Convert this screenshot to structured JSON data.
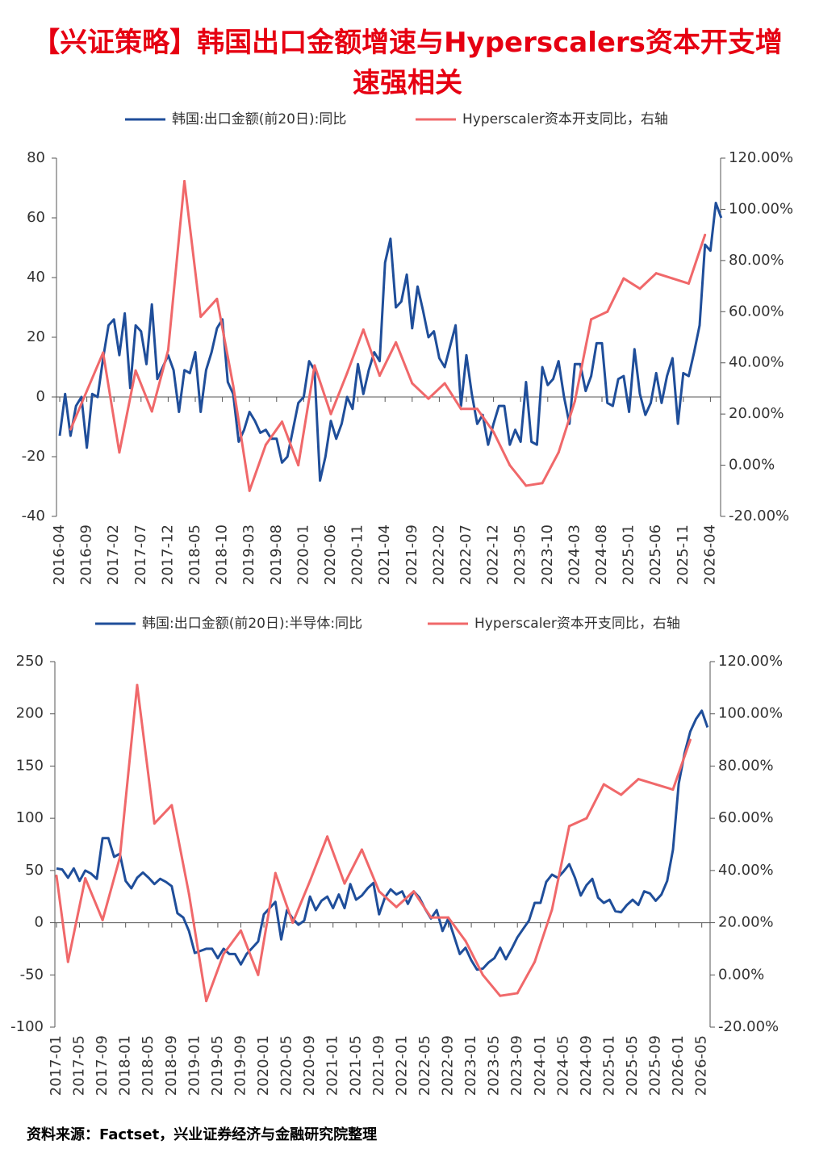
{
  "title": "【兴证策略】韩国出口金额增速与Hyperscalers资本开支增速强相关",
  "source": "资料来源：Factset，兴业证券经济与金融研究院整理",
  "chart_data": [
    {
      "type": "line",
      "categories": [
        "2016-04",
        null,
        null,
        null,
        null,
        "2016-09",
        null,
        null,
        null,
        null,
        "2017-02",
        null,
        null,
        null,
        null,
        "2017-07",
        null,
        null,
        null,
        null,
        "2017-12",
        null,
        null,
        null,
        null,
        "2018-05",
        null,
        null,
        null,
        null,
        "2018-10",
        null,
        null,
        null,
        null,
        "2019-03",
        null,
        null,
        null,
        null,
        "2019-08",
        null,
        null,
        null,
        null,
        "2020-01",
        null,
        null,
        null,
        null,
        "2020-06",
        null,
        null,
        null,
        null,
        "2020-11",
        null,
        null,
        null,
        null,
        "2021-04",
        null,
        null,
        null,
        null,
        "2021-09",
        null,
        null,
        null,
        null,
        "2022-02",
        null,
        null,
        null,
        null,
        "2022-07",
        null,
        null,
        null,
        null,
        "2022-12",
        null,
        null,
        null,
        null,
        "2023-05",
        null,
        null,
        null,
        null,
        "2023-10",
        null,
        null,
        null,
        null,
        "2024-03",
        null,
        null,
        null,
        null,
        "2024-08",
        null,
        null,
        null,
        null,
        "2025-01",
        null,
        null,
        null,
        null,
        "2025-06",
        null,
        null,
        null,
        null,
        "2025-11",
        null,
        null,
        null,
        null,
        "2026-04",
        null,
        null
      ],
      "series": [
        {
          "name": "韩国:出口金额(前20日):同比",
          "color": "#1f4e9a",
          "axis": "y",
          "values": [
            -13,
            1,
            -13,
            -3,
            0,
            -17,
            1,
            0,
            13,
            24,
            26,
            14,
            28,
            3,
            24,
            22,
            11,
            31,
            6,
            10,
            14,
            9,
            -5,
            9,
            8,
            15,
            -5,
            9,
            15,
            23,
            26,
            5,
            1,
            -15,
            -11,
            -5,
            -8,
            -12,
            -11,
            -14,
            -14,
            -22,
            -20,
            -11,
            -2,
            0,
            12,
            9,
            -28,
            -20,
            -8,
            -14,
            -9,
            0,
            -4,
            11,
            1,
            9,
            15,
            12,
            45,
            53,
            30,
            32,
            41,
            23,
            37,
            29,
            20,
            22,
            13,
            10,
            17,
            24,
            -3,
            14,
            1,
            -9,
            -6,
            -16,
            -9,
            -3,
            -3,
            -16,
            -11,
            -15,
            5,
            -15,
            -16,
            10,
            4,
            6,
            12,
            0,
            -9,
            11,
            11,
            2,
            7,
            18,
            18,
            -2,
            -3,
            6,
            7,
            -5,
            16,
            1,
            -6,
            -2,
            8,
            -2,
            7,
            13,
            -9,
            8,
            7,
            15,
            24,
            51,
            49,
            65,
            60
          ]
        },
        {
          "name": "Hyperscaler资本开支同比，右轴",
          "color": "#f0686a",
          "axis": "y2",
          "values": [
            null,
            null,
            14,
            null,
            null,
            29,
            null,
            null,
            44,
            null,
            null,
            5,
            null,
            null,
            37,
            null,
            null,
            21,
            null,
            null,
            45,
            null,
            null,
            111,
            null,
            null,
            58,
            null,
            null,
            65,
            null,
            null,
            31,
            null,
            null,
            -10,
            null,
            null,
            8,
            null,
            null,
            17,
            null,
            null,
            0,
            null,
            null,
            39,
            null,
            null,
            20,
            null,
            null,
            36,
            null,
            null,
            53,
            null,
            null,
            35,
            null,
            null,
            48,
            null,
            null,
            32,
            null,
            null,
            26,
            null,
            null,
            32,
            null,
            null,
            22,
            null,
            null,
            22,
            null,
            null,
            13,
            null,
            null,
            0,
            null,
            null,
            -8,
            null,
            null,
            -7,
            null,
            null,
            5,
            null,
            null,
            25,
            null,
            null,
            57,
            null,
            null,
            60,
            null,
            null,
            73,
            null,
            null,
            69,
            null,
            null,
            75,
            null,
            null,
            73,
            null,
            null,
            71,
            null,
            null,
            90,
            null,
            null,
            null
          ]
        }
      ],
      "ylim": [
        -40,
        80
      ],
      "yticks": [
        -40,
        -20,
        0,
        20,
        40,
        60,
        80
      ],
      "y2lim": [
        -20,
        120
      ],
      "y2ticks": [
        {
          "value": -20,
          "label": "-20.00%"
        },
        {
          "value": 0,
          "label": "0.00%"
        },
        {
          "value": 20,
          "label": "20.00%"
        },
        {
          "value": 40,
          "label": "40.00%"
        },
        {
          "value": 60,
          "label": "60.00%"
        },
        {
          "value": 80,
          "label": "80.00%"
        },
        {
          "value": 100,
          "label": "100.00%"
        },
        {
          "value": 120,
          "label": "120.00%"
        }
      ],
      "grid": false,
      "legend": "top"
    },
    {
      "type": "line",
      "categories": [
        "2017-01",
        null,
        null,
        null,
        "2017-05",
        null,
        null,
        null,
        "2017-09",
        null,
        null,
        null,
        "2018-01",
        null,
        null,
        null,
        "2018-05",
        null,
        null,
        null,
        "2018-09",
        null,
        null,
        null,
        "2019-01",
        null,
        null,
        null,
        "2019-05",
        null,
        null,
        null,
        "2019-09",
        null,
        null,
        null,
        "2020-01",
        null,
        null,
        null,
        "2020-05",
        null,
        null,
        null,
        "2020-09",
        null,
        null,
        null,
        "2021-01",
        null,
        null,
        null,
        "2021-05",
        null,
        null,
        null,
        "2021-09",
        null,
        null,
        null,
        "2022-01",
        null,
        null,
        null,
        "2022-05",
        null,
        null,
        null,
        "2022-09",
        null,
        null,
        null,
        "2023-01",
        null,
        null,
        null,
        "2023-05",
        null,
        null,
        null,
        "2023-09",
        null,
        null,
        null,
        "2024-01",
        null,
        null,
        null,
        "2024-05",
        null,
        null,
        null,
        "2024-09",
        null,
        null,
        null,
        "2025-01",
        null,
        null,
        null,
        "2025-05",
        null,
        null,
        null,
        "2025-09",
        null,
        null,
        null,
        "2026-01",
        null,
        null,
        null,
        "2026-05",
        null
      ],
      "series": [
        {
          "name": "韩国:出口金额(前20日):半导体:同比",
          "color": "#1f4e9a",
          "axis": "y",
          "values": [
            52,
            51,
            43,
            52,
            40,
            50,
            47,
            42,
            81,
            81,
            63,
            66,
            40,
            33,
            43,
            48,
            43,
            37,
            42,
            39,
            35,
            9,
            5,
            -8,
            -29,
            -27,
            -25,
            -25,
            -34,
            -25,
            -30,
            -30,
            -40,
            -30,
            -24,
            -18,
            8,
            14,
            20,
            -16,
            12,
            4,
            -2,
            2,
            25,
            12,
            21,
            25,
            14,
            27,
            14,
            37,
            22,
            26,
            33,
            38,
            8,
            24,
            32,
            27,
            30,
            18,
            30,
            24,
            13,
            4,
            12,
            -8,
            4,
            -13,
            -30,
            -24,
            -36,
            -45,
            -44,
            -38,
            -34,
            -24,
            -35,
            -25,
            -14,
            -6,
            2,
            19,
            19,
            39,
            46,
            43,
            49,
            56,
            43,
            26,
            36,
            42,
            24,
            19,
            22,
            11,
            10,
            17,
            22,
            17,
            30,
            28,
            21,
            27,
            40,
            70,
            133,
            162,
            183,
            195,
            203,
            187
          ]
        },
        {
          "name": "Hyperscaler资本开支同比，右轴",
          "color": "#f0686a",
          "axis": "y2",
          "values": [
            38,
            null,
            5,
            null,
            null,
            37,
            null,
            null,
            21,
            null,
            null,
            45,
            null,
            null,
            111,
            null,
            null,
            58,
            null,
            null,
            65,
            null,
            null,
            31,
            null,
            null,
            -10,
            null,
            null,
            8,
            null,
            null,
            17,
            null,
            null,
            0,
            null,
            null,
            39,
            null,
            null,
            20,
            null,
            null,
            36,
            null,
            null,
            53,
            null,
            null,
            35,
            null,
            null,
            48,
            null,
            null,
            32,
            null,
            null,
            26,
            null,
            null,
            32,
            null,
            null,
            22,
            null,
            null,
            22,
            null,
            null,
            13,
            null,
            null,
            0,
            null,
            null,
            -8,
            null,
            null,
            -7,
            null,
            null,
            5,
            null,
            null,
            25,
            null,
            null,
            57,
            null,
            null,
            60,
            null,
            null,
            73,
            null,
            null,
            69,
            null,
            null,
            75,
            null,
            null,
            73,
            null,
            null,
            71,
            null,
            null,
            90,
            null,
            null,
            null
          ]
        }
      ],
      "ylim": [
        -100,
        250
      ],
      "yticks": [
        -100,
        -50,
        0,
        50,
        100,
        150,
        200,
        250
      ],
      "y2lim": [
        -20,
        120
      ],
      "y2ticks": [
        {
          "value": -20,
          "label": "-20.00%"
        },
        {
          "value": 0,
          "label": "0.00%"
        },
        {
          "value": 20,
          "label": "20.00%"
        },
        {
          "value": 40,
          "label": "40.00%"
        },
        {
          "value": 60,
          "label": "60.00%"
        },
        {
          "value": 80,
          "label": "80.00%"
        },
        {
          "value": 100,
          "label": "100.00%"
        },
        {
          "value": 120,
          "label": "120.00%"
        }
      ],
      "grid": false,
      "legend": "top"
    }
  ]
}
